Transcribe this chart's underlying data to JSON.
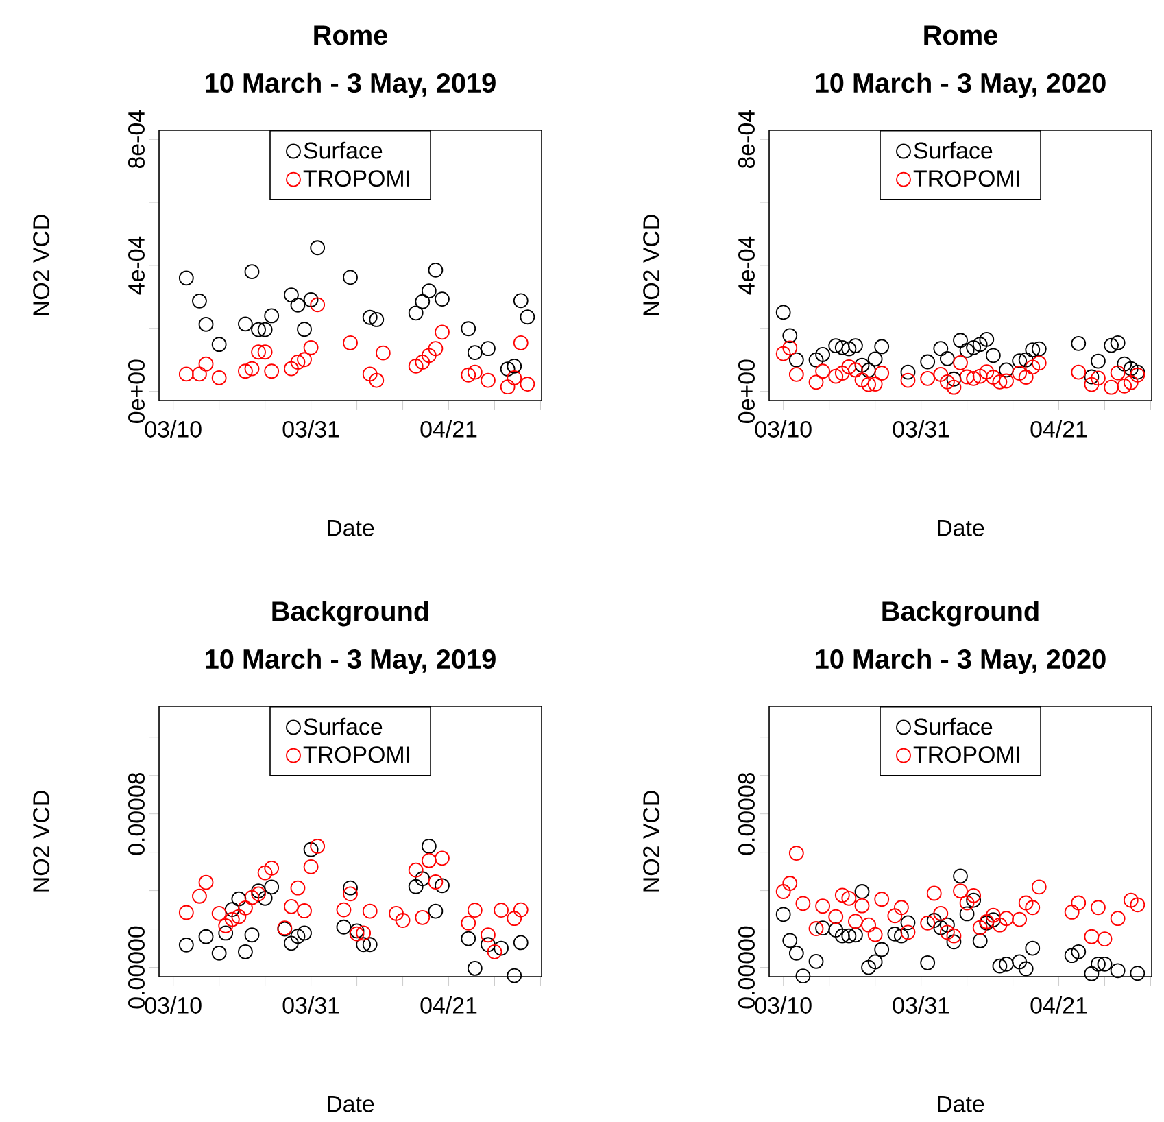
{
  "chart_data": [
    {
      "type": "scatter",
      "title": "Rome",
      "subtitle": "10 March - 3 May, 2019",
      "xlabel": "Date",
      "ylabel": "NO2 VCD",
      "legend": "top",
      "marker": "circle",
      "xlim": [
        "2019-03-07T20:10",
        "2019-05-05T03:50"
      ],
      "xticks": [
        {
          "value": "2019-03-10",
          "label": "03/10"
        },
        {
          "value": "2019-03-17",
          "label": null
        },
        {
          "value": "2019-03-24",
          "label": null
        },
        {
          "value": "2019-03-31",
          "label": "03/31"
        },
        {
          "value": "2019-04-07",
          "label": null
        },
        {
          "value": "2019-04-14",
          "label": null
        },
        {
          "value": "2019-04-21",
          "label": "04/21"
        },
        {
          "value": "2019-04-28",
          "label": null
        },
        {
          "value": "2019-05-05",
          "label": null
        }
      ],
      "ylim": [
        -2.9e-05,
        0.000829
      ],
      "yticks": [
        {
          "value": 0,
          "label": "0e+00"
        },
        {
          "value": 0.0002,
          "label": null
        },
        {
          "value": 0.0004,
          "label": "4e-04"
        },
        {
          "value": 0.0006,
          "label": null
        },
        {
          "value": 0.0008,
          "label": "8e-04"
        }
      ],
      "series": [
        {
          "name": "Surface",
          "color": "#000000",
          "x": [
            "2019-03-12",
            "2019-03-14",
            "2019-03-15",
            "2019-03-17",
            "2019-03-21",
            "2019-03-22",
            "2019-03-23",
            "2019-03-24",
            "2019-03-25",
            "2019-03-28",
            "2019-03-29",
            "2019-03-30",
            "2019-03-31",
            "2019-04-01",
            "2019-04-06",
            "2019-04-09",
            "2019-04-10",
            "2019-04-16",
            "2019-04-17",
            "2019-04-18",
            "2019-04-19",
            "2019-04-20",
            "2019-04-24",
            "2019-04-25",
            "2019-04-27",
            "2019-04-30",
            "2019-05-01",
            "2019-05-02",
            "2019-05-03"
          ],
          "values": [
            0.00036,
            0.000287,
            0.000213,
            0.000149,
            0.000214,
            0.00038,
            0.000196,
            0.000196,
            0.00024,
            0.000306,
            0.000274,
            0.000197,
            0.000291,
            0.000456,
            0.000362,
            0.000235,
            0.000228,
            0.000249,
            0.000285,
            0.000319,
            0.000385,
            0.000293,
            0.000199,
            0.000123,
            0.000136,
            7.1e-05,
            8e-05,
            0.000288,
            0.000236
          ]
        },
        {
          "name": "TROPOMI",
          "color": "#ff0000",
          "x": [
            "2019-03-12",
            "2019-03-14",
            "2019-03-15",
            "2019-03-17",
            "2019-03-21",
            "2019-03-22",
            "2019-03-23",
            "2019-03-24",
            "2019-03-25",
            "2019-03-28",
            "2019-03-29",
            "2019-03-30",
            "2019-03-31",
            "2019-04-01",
            "2019-04-06",
            "2019-04-09",
            "2019-04-10",
            "2019-04-11",
            "2019-04-16",
            "2019-04-17",
            "2019-04-18",
            "2019-04-19",
            "2019-04-20",
            "2019-04-24",
            "2019-04-25",
            "2019-04-27",
            "2019-04-30",
            "2019-05-01",
            "2019-05-02",
            "2019-05-03"
          ],
          "values": [
            5.5e-05,
            5.5e-05,
            8.7e-05,
            4.3e-05,
            6.4e-05,
            7.2e-05,
            0.000125,
            0.000125,
            6.4e-05,
            7.2e-05,
            9.3e-05,
            0.000101,
            0.000139,
            0.000275,
            0.000154,
            5.5e-05,
            3.5e-05,
            0.000122,
            8e-05,
            9.3e-05,
            0.000114,
            0.000136,
            0.000188,
            5.2e-05,
            6.1e-05,
            3.5e-05,
            1.4e-05,
            4.3e-05,
            0.000154,
            2.3e-05
          ]
        }
      ]
    },
    {
      "type": "scatter",
      "title": "Rome",
      "subtitle": "10 March - 3 May, 2020",
      "xlabel": "Date",
      "ylabel": "NO2 VCD",
      "legend": "top",
      "marker": "circle",
      "xlim": [
        "2020-03-07T20:10",
        "2020-05-05T03:50"
      ],
      "xticks": [
        {
          "value": "2020-03-10",
          "label": "03/10"
        },
        {
          "value": "2020-03-17",
          "label": null
        },
        {
          "value": "2020-03-24",
          "label": null
        },
        {
          "value": "2020-03-31",
          "label": "03/31"
        },
        {
          "value": "2020-04-07",
          "label": null
        },
        {
          "value": "2020-04-14",
          "label": null
        },
        {
          "value": "2020-04-21",
          "label": "04/21"
        },
        {
          "value": "2020-04-28",
          "label": null
        },
        {
          "value": "2020-05-05",
          "label": null
        }
      ],
      "ylim": [
        -2.9e-05,
        0.000829
      ],
      "yticks": [
        {
          "value": 0,
          "label": "0e+00"
        },
        {
          "value": 0.0002,
          "label": null
        },
        {
          "value": 0.0004,
          "label": "4e-04"
        },
        {
          "value": 0.0006,
          "label": null
        },
        {
          "value": 0.0008,
          "label": "8e-04"
        }
      ],
      "series": [
        {
          "name": "Surface",
          "color": "#000000",
          "x": [
            "2020-03-10",
            "2020-03-11",
            "2020-03-12",
            "2020-03-15",
            "2020-03-16",
            "2020-03-18",
            "2020-03-19",
            "2020-03-20",
            "2020-03-21",
            "2020-03-22",
            "2020-03-23",
            "2020-03-24",
            "2020-03-25",
            "2020-03-29",
            "2020-04-01",
            "2020-04-03",
            "2020-04-04",
            "2020-04-05",
            "2020-04-06",
            "2020-04-07",
            "2020-04-08",
            "2020-04-09",
            "2020-04-10",
            "2020-04-11",
            "2020-04-13",
            "2020-04-15",
            "2020-04-16",
            "2020-04-17",
            "2020-04-18",
            "2020-04-24",
            "2020-04-26",
            "2020-04-27",
            "2020-04-29",
            "2020-04-30",
            "2020-05-01",
            "2020-05-02",
            "2020-05-03"
          ],
          "values": [
            0.000251,
            0.000177,
            0.0001,
            0.0001,
            0.000117,
            0.000145,
            0.000139,
            0.000135,
            0.000145,
            8.3e-05,
            6.7e-05,
            0.000103,
            0.000142,
            6.1e-05,
            9.4e-05,
            0.000136,
            0.000104,
            3.9e-05,
            0.000162,
            0.00013,
            0.000139,
            0.000149,
            0.000165,
            0.000114,
            6.8e-05,
            9.7e-05,
            0.0001,
            0.000132,
            0.000135,
            0.000152,
            4.6e-05,
            9.6e-05,
            0.000146,
            0.000154,
            8.7e-05,
            7.2e-05,
            6.1e-05
          ]
        },
        {
          "name": "TROPOMI",
          "color": "#ff0000",
          "x": [
            "2020-03-10",
            "2020-03-11",
            "2020-03-12",
            "2020-03-15",
            "2020-03-16",
            "2020-03-18",
            "2020-03-19",
            "2020-03-20",
            "2020-03-21",
            "2020-03-22",
            "2020-03-23",
            "2020-03-24",
            "2020-03-25",
            "2020-03-29",
            "2020-04-01",
            "2020-04-03",
            "2020-04-04",
            "2020-04-05",
            "2020-04-06",
            "2020-04-07",
            "2020-04-08",
            "2020-04-09",
            "2020-04-10",
            "2020-04-11",
            "2020-04-12",
            "2020-04-13",
            "2020-04-15",
            "2020-04-16",
            "2020-04-17",
            "2020-04-18",
            "2020-04-24",
            "2020-04-26",
            "2020-04-27",
            "2020-04-29",
            "2020-04-30",
            "2020-05-01",
            "2020-05-02",
            "2020-05-03"
          ],
          "values": [
            0.00012,
            0.000138,
            5.4e-05,
            2.9e-05,
            6.4e-05,
            4.8e-05,
            5.8e-05,
            7.8e-05,
            6.8e-05,
            3.6e-05,
            2.2e-05,
            2.3e-05,
            5.8e-05,
            3.5e-05,
            4.1e-05,
            5.4e-05,
            3e-05,
            1.3e-05,
            9.1e-05,
            4.6e-05,
            4.1e-05,
            4.8e-05,
            6.2e-05,
            4.5e-05,
            3e-05,
            3.3e-05,
            5.8e-05,
            4.5e-05,
            7.7e-05,
            9e-05,
            6.1e-05,
            2.2e-05,
            4.2e-05,
            1.3e-05,
            5.9e-05,
            1.7e-05,
            2.8e-05,
            5.2e-05
          ]
        }
      ]
    },
    {
      "type": "scatter",
      "title": "Background",
      "subtitle": "10 March - 3 May, 2019",
      "xlabel": "Date",
      "ylabel": "NO2 VCD",
      "legend": "top",
      "marker": "circle",
      "xlim": [
        "2019-03-07T20:10",
        "2019-05-05T03:50"
      ],
      "xticks": [
        {
          "value": "2019-03-10",
          "label": "03/10"
        },
        {
          "value": "2019-03-17",
          "label": null
        },
        {
          "value": "2019-03-24",
          "label": null
        },
        {
          "value": "2019-03-31",
          "label": "03/31"
        },
        {
          "value": "2019-04-07",
          "label": null
        },
        {
          "value": "2019-04-14",
          "label": null
        },
        {
          "value": "2019-04-21",
          "label": "04/21"
        },
        {
          "value": "2019-04-28",
          "label": null
        },
        {
          "value": "2019-05-05",
          "label": null
        }
      ],
      "ylim": [
        -4.8e-06,
        0.000136
      ],
      "yticks": [
        {
          "value": 0,
          "label": "0.00000"
        },
        {
          "value": 2e-05,
          "label": null
        },
        {
          "value": 4e-05,
          "label": null
        },
        {
          "value": 6e-05,
          "label": null
        },
        {
          "value": 8e-05,
          "label": "0.00008"
        },
        {
          "value": 0.0001,
          "label": null
        },
        {
          "value": 0.00012,
          "label": null
        }
      ],
      "series": [
        {
          "name": "Surface",
          "color": "#000000",
          "x": [
            "2019-03-12",
            "2019-03-15",
            "2019-03-17",
            "2019-03-18",
            "2019-03-19",
            "2019-03-20",
            "2019-03-21",
            "2019-03-22",
            "2019-03-23",
            "2019-03-24",
            "2019-03-25",
            "2019-03-27",
            "2019-03-28",
            "2019-03-29",
            "2019-03-30",
            "2019-03-31",
            "2019-04-05",
            "2019-04-06",
            "2019-04-07",
            "2019-04-08",
            "2019-04-09",
            "2019-04-16",
            "2019-04-17",
            "2019-04-18",
            "2019-04-19",
            "2019-04-20",
            "2019-04-24",
            "2019-04-25",
            "2019-04-27",
            "2019-04-29",
            "2019-05-01",
            "2019-05-02"
          ],
          "values": [
            1.17e-05,
            1.6e-05,
            7.4e-06,
            1.79e-05,
            3.02e-05,
            3.57e-05,
            8.1e-06,
            1.69e-05,
            3.98e-05,
            3.6e-05,
            4.19e-05,
            2e-05,
            1.26e-05,
            1.62e-05,
            1.79e-05,
            6.14e-05,
            2.1e-05,
            4.14e-05,
            1.9e-05,
            1.19e-05,
            1.19e-05,
            4.21e-05,
            4.62e-05,
            6.31e-05,
            2.93e-05,
            4.26e-05,
            1.5e-05,
            -5e-07,
            1.19e-05,
            1e-05,
            -4.3e-06,
            1.29e-05
          ]
        },
        {
          "name": "TROPOMI",
          "color": "#ff0000",
          "x": [
            "2019-03-12",
            "2019-03-14",
            "2019-03-15",
            "2019-03-17",
            "2019-03-18",
            "2019-03-19",
            "2019-03-20",
            "2019-03-21",
            "2019-03-22",
            "2019-03-23",
            "2019-03-24",
            "2019-03-25",
            "2019-03-27",
            "2019-03-28",
            "2019-03-29",
            "2019-03-30",
            "2019-03-31",
            "2019-04-01",
            "2019-04-05",
            "2019-04-06",
            "2019-04-07",
            "2019-04-08",
            "2019-04-09",
            "2019-04-13",
            "2019-04-14",
            "2019-04-16",
            "2019-04-17",
            "2019-04-18",
            "2019-04-19",
            "2019-04-20",
            "2019-04-24",
            "2019-04-25",
            "2019-04-27",
            "2019-04-28",
            "2019-04-29",
            "2019-05-01",
            "2019-05-02"
          ],
          "values": [
            2.86e-05,
            3.71e-05,
            4.43e-05,
            2.81e-05,
            2.17e-05,
            2.5e-05,
            2.64e-05,
            3.1e-05,
            3.64e-05,
            3.83e-05,
            4.93e-05,
            5.17e-05,
            2.05e-05,
            3.17e-05,
            4.14e-05,
            2.95e-05,
            5.24e-05,
            6.31e-05,
            3e-05,
            3.83e-05,
            1.75e-05,
            1.79e-05,
            2.93e-05,
            2.81e-05,
            2.45e-05,
            5.07e-05,
            2.6e-05,
            5.57e-05,
            4.45e-05,
            5.69e-05,
            2.31e-05,
            2.98e-05,
            1.69e-05,
            8.1e-06,
            2.98e-05,
            2.55e-05,
            3e-05
          ]
        }
      ]
    },
    {
      "type": "scatter",
      "title": "Background",
      "subtitle": "10 March - 3 May, 2020",
      "xlabel": "Date",
      "ylabel": "NO2 VCD",
      "legend": "top",
      "marker": "circle",
      "xlim": [
        "2020-03-07T20:10",
        "2020-05-05T03:50"
      ],
      "xticks": [
        {
          "value": "2020-03-10",
          "label": "03/10"
        },
        {
          "value": "2020-03-17",
          "label": null
        },
        {
          "value": "2020-03-24",
          "label": null
        },
        {
          "value": "2020-03-31",
          "label": "03/31"
        },
        {
          "value": "2020-04-07",
          "label": null
        },
        {
          "value": "2020-04-14",
          "label": null
        },
        {
          "value": "2020-04-21",
          "label": "04/21"
        },
        {
          "value": "2020-04-28",
          "label": null
        },
        {
          "value": "2020-05-05",
          "label": null
        }
      ],
      "ylim": [
        -4.8e-06,
        0.000136
      ],
      "yticks": [
        {
          "value": 0,
          "label": "0.00000"
        },
        {
          "value": 2e-05,
          "label": null
        },
        {
          "value": 4e-05,
          "label": null
        },
        {
          "value": 6e-05,
          "label": null
        },
        {
          "value": 8e-05,
          "label": "0.00008"
        },
        {
          "value": 0.0001,
          "label": null
        },
        {
          "value": 0.00012,
          "label": null
        }
      ],
      "series": [
        {
          "name": "Surface",
          "color": "#000000",
          "x": [
            "2020-03-10",
            "2020-03-11",
            "2020-03-12",
            "2020-03-13",
            "2020-03-15",
            "2020-03-16",
            "2020-03-18",
            "2020-03-19",
            "2020-03-20",
            "2020-03-21",
            "2020-03-22",
            "2020-03-23",
            "2020-03-24",
            "2020-03-25",
            "2020-03-27",
            "2020-03-28",
            "2020-03-29",
            "2020-04-01",
            "2020-04-02",
            "2020-04-03",
            "2020-04-04",
            "2020-04-05",
            "2020-04-06",
            "2020-04-07",
            "2020-04-08",
            "2020-04-09",
            "2020-04-10",
            "2020-04-11",
            "2020-04-12",
            "2020-04-13",
            "2020-04-15",
            "2020-04-16",
            "2020-04-17",
            "2020-04-23",
            "2020-04-24",
            "2020-04-26",
            "2020-04-27",
            "2020-04-28",
            "2020-04-30",
            "2020-05-03"
          ],
          "values": [
            2.76e-05,
            1.4e-05,
            7.4e-06,
            -4.5e-06,
            3.1e-06,
            2.05e-05,
            1.95e-05,
            1.64e-05,
            1.64e-05,
            1.69e-05,
            3.95e-05,
            0,
            2.9e-06,
            9.3e-06,
            1.74e-05,
            1.64e-05,
            2.33e-05,
            2.4e-06,
            2.45e-05,
            2.07e-05,
            2.21e-05,
            1.33e-05,
            4.76e-05,
            2.79e-05,
            3.5e-05,
            1.38e-05,
            2.31e-05,
            2.48e-05,
            7e-07,
            1.7e-06,
            2.9e-06,
            -7e-07,
            1e-05,
            6.2e-06,
            8.1e-06,
            -3.3e-06,
            1.7e-06,
            1.7e-06,
            -1.7e-06,
            -3.1e-06
          ]
        },
        {
          "name": "TROPOMI",
          "color": "#ff0000",
          "x": [
            "2020-03-10",
            "2020-03-11",
            "2020-03-12",
            "2020-03-13",
            "2020-03-15",
            "2020-03-16",
            "2020-03-18",
            "2020-03-19",
            "2020-03-20",
            "2020-03-21",
            "2020-03-22",
            "2020-03-23",
            "2020-03-24",
            "2020-03-25",
            "2020-03-27",
            "2020-03-28",
            "2020-03-29",
            "2020-04-01",
            "2020-04-02",
            "2020-04-03",
            "2020-04-04",
            "2020-04-05",
            "2020-04-06",
            "2020-04-07",
            "2020-04-08",
            "2020-04-09",
            "2020-04-10",
            "2020-04-11",
            "2020-04-12",
            "2020-04-13",
            "2020-04-15",
            "2020-04-16",
            "2020-04-17",
            "2020-04-18",
            "2020-04-23",
            "2020-04-24",
            "2020-04-26",
            "2020-04-27",
            "2020-04-28",
            "2020-04-30",
            "2020-05-02",
            "2020-05-03"
          ],
          "values": [
            3.95e-05,
            4.38e-05,
            5.95e-05,
            3.33e-05,
            2.02e-05,
            3.19e-05,
            2.64e-05,
            3.76e-05,
            3.6e-05,
            2.4e-05,
            3.21e-05,
            2.21e-05,
            1.71e-05,
            3.55e-05,
            2.69e-05,
            3.12e-05,
            1.83e-05,
            2.31e-05,
            3.86e-05,
            2.81e-05,
            1.83e-05,
            1.64e-05,
            3.98e-05,
            3.36e-05,
            3.74e-05,
            2.07e-05,
            2.38e-05,
            2.71e-05,
            2.21e-05,
            2.55e-05,
            2.5e-05,
            3.36e-05,
            3.12e-05,
            4.19e-05,
            2.88e-05,
            3.36e-05,
            1.6e-05,
            3.12e-05,
            1.48e-05,
            2.55e-05,
            3.5e-05,
            3.26e-05
          ]
        }
      ]
    }
  ]
}
